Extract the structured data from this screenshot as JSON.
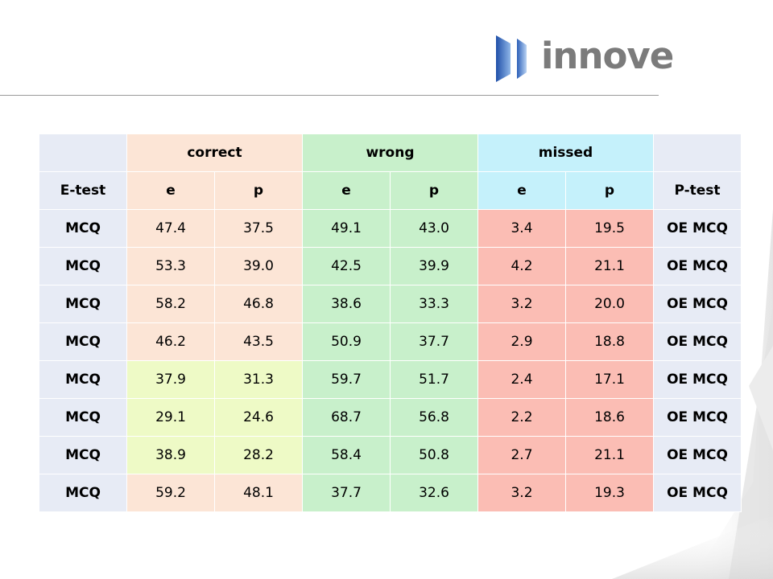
{
  "logo": {
    "text": "innove"
  },
  "table": {
    "group_headers": [
      "",
      "correct",
      "wrong",
      "missed",
      ""
    ],
    "sub_headers": [
      "E-test",
      "e",
      "p",
      "e",
      "p",
      "e",
      "p",
      "P-test"
    ],
    "rows": [
      {
        "left": "MCQ",
        "correct_e": "47.4",
        "correct_p": "37.5",
        "wrong_e": "49.1",
        "wrong_p": "43.0",
        "missed_e": "3.4",
        "missed_p": "19.5",
        "right": "OE MCQ"
      },
      {
        "left": "MCQ",
        "correct_e": "53.3",
        "correct_p": "39.0",
        "wrong_e": "42.5",
        "wrong_p": "39.9",
        "missed_e": "4.2",
        "missed_p": "21.1",
        "right": "OE MCQ"
      },
      {
        "left": "MCQ",
        "correct_e": "58.2",
        "correct_p": "46.8",
        "wrong_e": "38.6",
        "wrong_p": "33.3",
        "missed_e": "3.2",
        "missed_p": "20.0",
        "right": "OE MCQ"
      },
      {
        "left": "MCQ",
        "correct_e": "46.2",
        "correct_p": "43.5",
        "wrong_e": "50.9",
        "wrong_p": "37.7",
        "missed_e": "2.9",
        "missed_p": "18.8",
        "right": "OE MCQ"
      },
      {
        "left": "MCQ",
        "correct_e": "37.9",
        "correct_p": "31.3",
        "wrong_e": "59.7",
        "wrong_p": "51.7",
        "missed_e": "2.4",
        "missed_p": "17.1",
        "right": "OE MCQ"
      },
      {
        "left": "MCQ",
        "correct_e": "29.1",
        "correct_p": "24.6",
        "wrong_e": "68.7",
        "wrong_p": "56.8",
        "missed_e": "2.2",
        "missed_p": "18.6",
        "right": "OE MCQ"
      },
      {
        "left": "MCQ",
        "correct_e": "38.9",
        "correct_p": "28.2",
        "wrong_e": "58.4",
        "wrong_p": "50.8",
        "missed_e": "2.7",
        "missed_p": "21.1",
        "right": "OE MCQ"
      },
      {
        "left": "MCQ",
        "correct_e": "59.2",
        "correct_p": "48.1",
        "wrong_e": "37.7",
        "wrong_p": "32.6",
        "missed_e": "3.2",
        "missed_p": "19.3",
        "right": "OE MCQ"
      }
    ]
  },
  "colors": {
    "correct": "#fce5d6",
    "correct_highlight": "#eefac6",
    "wrong": "#c8f0cb",
    "missed_header": "#c5f1fb",
    "missed_values": "#fbbdb4",
    "side": "#e7ebf5"
  }
}
